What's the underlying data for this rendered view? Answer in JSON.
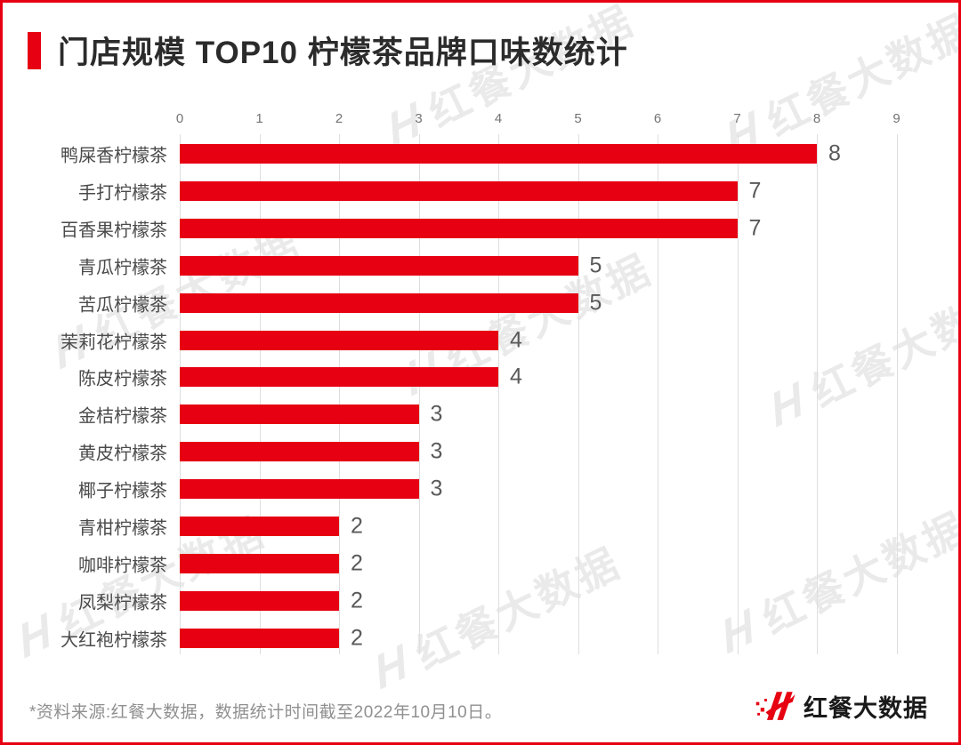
{
  "title": "门店规模 TOP10 柠檬茶品牌口味数统计",
  "watermark": {
    "text": "红餐大数据"
  },
  "chart_data": {
    "type": "bar",
    "orientation": "horizontal",
    "title": "门店规模 TOP10 柠檬茶品牌口味数统计",
    "categories": [
      "鸭屎香柠檬茶",
      "手打柠檬茶",
      "百香果柠檬茶",
      "青瓜柠檬茶",
      "苦瓜柠檬茶",
      "茉莉花柠檬茶",
      "陈皮柠檬茶",
      "金桔柠檬茶",
      "黄皮柠檬茶",
      "椰子柠檬茶",
      "青柑柠檬茶",
      "咖啡柠檬茶",
      "凤梨柠檬茶",
      "大红袍柠檬茶"
    ],
    "values": [
      8,
      7,
      7,
      5,
      5,
      4,
      4,
      3,
      3,
      3,
      2,
      2,
      2,
      2
    ],
    "x_ticks": [
      "0",
      "1",
      "2",
      "3",
      "4",
      "5",
      "6",
      "7",
      "8",
      "9"
    ],
    "xlim": [
      0,
      9
    ],
    "grid": true,
    "legend": false,
    "bar_color": "#e60012",
    "value_labels": true
  },
  "footer": {
    "source_note": "*资料来源:红餐大数据，数据统计时间截至2022年10月10日。",
    "brand_name": "红餐大数据"
  },
  "colors": {
    "accent_red": "#e60012",
    "title_text": "#2b2b2b",
    "category_text": "#4a4a4a",
    "value_text": "#595959",
    "axis_text": "#737373",
    "gridline": "#dedede",
    "footer_text": "#909090"
  }
}
